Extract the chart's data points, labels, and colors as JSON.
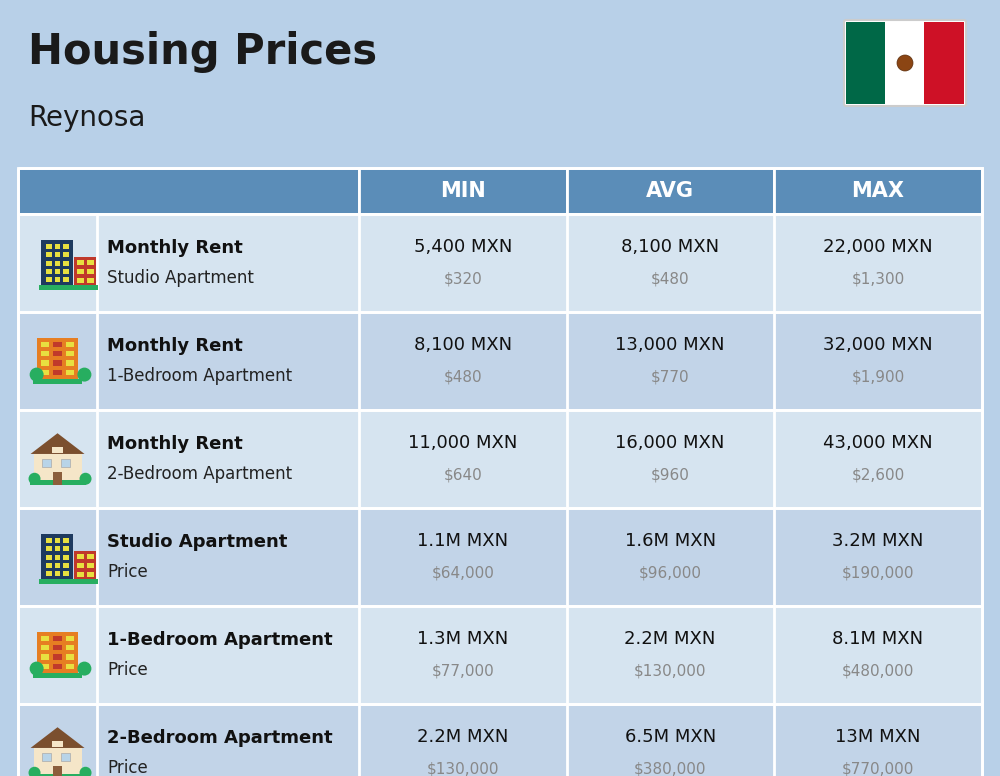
{
  "title": "Housing Prices",
  "subtitle": "Reynosa",
  "background_color": "#b8d0e8",
  "header_bg_color": "#5b8db8",
  "header_text_color": "#ffffff",
  "row_colors": [
    "#d6e4f0",
    "#c2d4e8"
  ],
  "header_labels": [
    "MIN",
    "AVG",
    "MAX"
  ],
  "rows": [
    {
      "icon": "studio_blue",
      "label_bold": "Monthly Rent",
      "label_regular": "Studio Apartment",
      "min_main": "5,400 MXN",
      "min_sub": "$320",
      "avg_main": "8,100 MXN",
      "avg_sub": "$480",
      "max_main": "22,000 MXN",
      "max_sub": "$1,300"
    },
    {
      "icon": "onebed_orange",
      "label_bold": "Monthly Rent",
      "label_regular": "1-Bedroom Apartment",
      "min_main": "8,100 MXN",
      "min_sub": "$480",
      "avg_main": "13,000 MXN",
      "avg_sub": "$770",
      "max_main": "32,000 MXN",
      "max_sub": "$1,900"
    },
    {
      "icon": "twobed_house",
      "label_bold": "Monthly Rent",
      "label_regular": "2-Bedroom Apartment",
      "min_main": "11,000 MXN",
      "min_sub": "$640",
      "avg_main": "16,000 MXN",
      "avg_sub": "$960",
      "max_main": "43,000 MXN",
      "max_sub": "$2,600"
    },
    {
      "icon": "studio_blue",
      "label_bold": "Studio Apartment",
      "label_regular": "Price",
      "min_main": "1.1M MXN",
      "min_sub": "$64,000",
      "avg_main": "1.6M MXN",
      "avg_sub": "$96,000",
      "max_main": "3.2M MXN",
      "max_sub": "$190,000"
    },
    {
      "icon": "onebed_orange",
      "label_bold": "1-Bedroom Apartment",
      "label_regular": "Price",
      "min_main": "1.3M MXN",
      "min_sub": "$77,000",
      "avg_main": "2.2M MXN",
      "avg_sub": "$130,000",
      "max_main": "8.1M MXN",
      "max_sub": "$480,000"
    },
    {
      "icon": "twobed_house",
      "label_bold": "2-Bedroom Apartment",
      "label_regular": "Price",
      "min_main": "2.2M MXN",
      "min_sub": "$130,000",
      "avg_main": "6.5M MXN",
      "avg_sub": "$380,000",
      "max_main": "13M MXN",
      "max_sub": "$770,000"
    }
  ]
}
